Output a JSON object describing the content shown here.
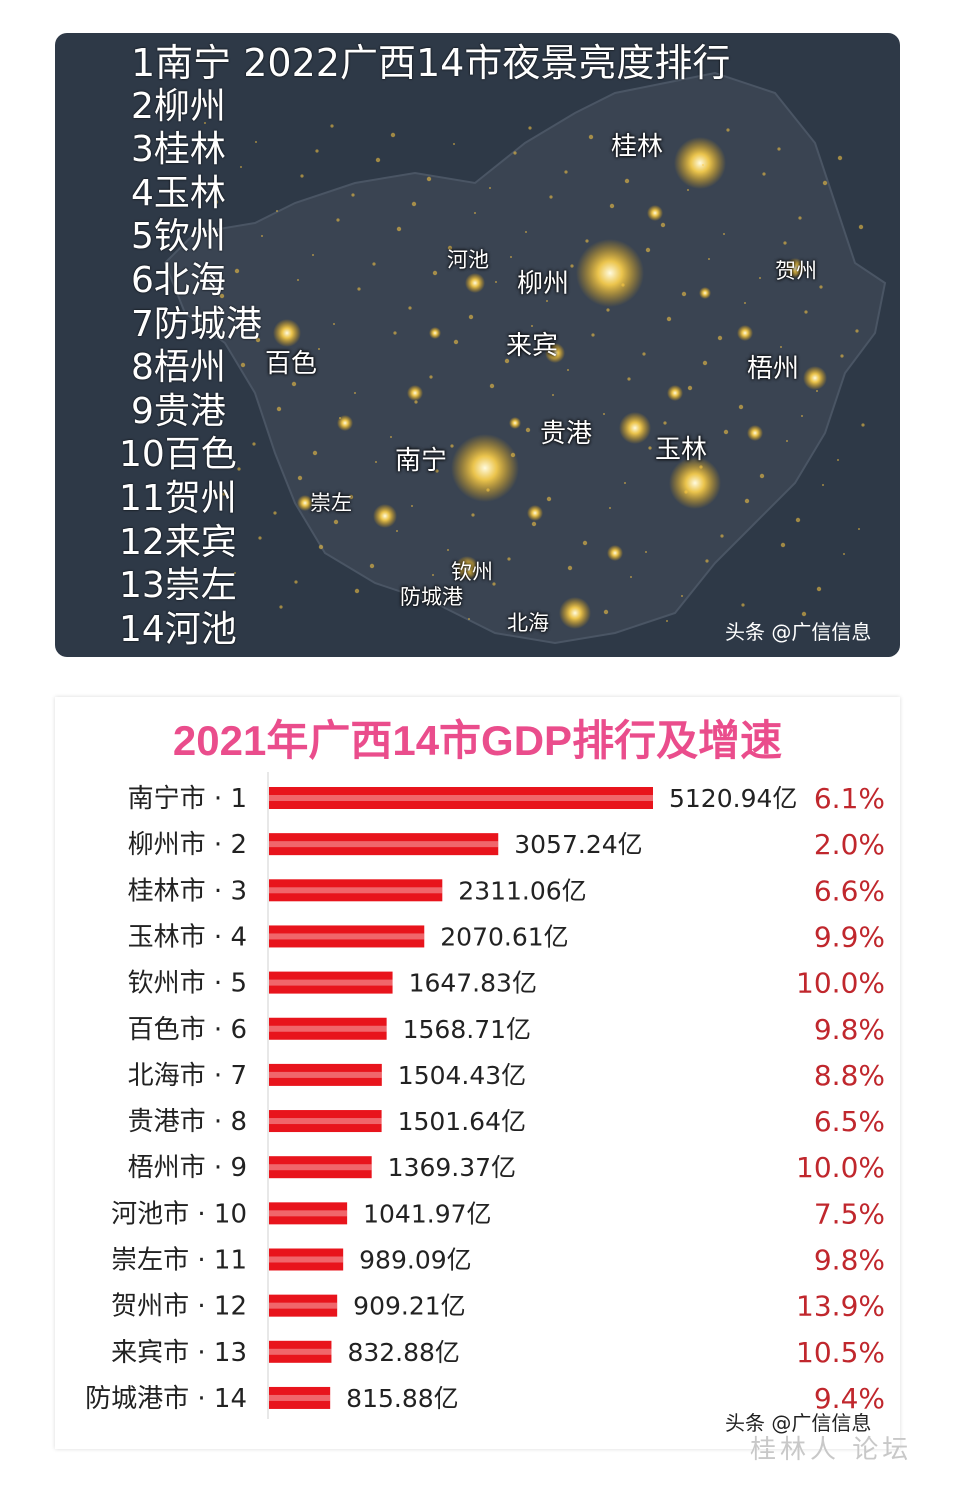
{
  "map": {
    "title": "1南宁 2022广西14市夜景亮度排行",
    "ranking": [
      "2柳州",
      "3桂林",
      "4玉林",
      "5钦州",
      "6北海",
      "7防城港",
      "8梧州",
      "9贵港",
      "10百色",
      "11贺州",
      "12来宾",
      "13崇左",
      "14河池"
    ],
    "cities": [
      "桂林",
      "河池",
      "贺州",
      "柳州",
      "来宾",
      "百色",
      "梧州",
      "贵港",
      "玉林",
      "南宁",
      "崇左",
      "钦州",
      "防城港",
      "北海"
    ],
    "watermark": "头条 @广信信息"
  },
  "chart_data": {
    "type": "bar",
    "orientation": "horizontal",
    "title": "2021年广西14市GDP排行及增速",
    "categories": [
      "南宁市 · 1",
      "柳州市 · 2",
      "桂林市 · 3",
      "玉林市 · 4",
      "钦州市 · 5",
      "百色市 · 6",
      "北海市 · 7",
      "贵港市 · 8",
      "梧州市 · 9",
      "河池市 · 10",
      "崇左市 · 11",
      "贺州市 · 12",
      "来宾市 · 13",
      "防城港市 · 14"
    ],
    "values": [
      5120.94,
      3057.24,
      2311.06,
      2070.61,
      1647.83,
      1568.71,
      1504.43,
      1501.64,
      1369.37,
      1041.97,
      989.09,
      909.21,
      832.88,
      815.88
    ],
    "value_labels": [
      "5120.94亿",
      "3057.24亿",
      "2311.06亿",
      "2070.61亿",
      "1647.83亿",
      "1568.71亿",
      "1504.43亿",
      "1501.64亿",
      "1369.37亿",
      "1041.97亿",
      "989.09亿",
      "909.21亿",
      "832.88亿",
      "815.88亿"
    ],
    "growth_labels": [
      "6.1%",
      "2.0%",
      "6.6%",
      "9.9%",
      "10.0%",
      "9.8%",
      "8.8%",
      "6.5%",
      "10.0%",
      "7.5%",
      "9.8%",
      "13.9%",
      "10.5%",
      "9.4%"
    ],
    "bar_color": "#e8141c",
    "growth_color": "#c0272d",
    "xlim": [
      0,
      5120.94
    ]
  },
  "chart_watermark": "头条 @广信信息",
  "site_mark": "桂林人 论坛"
}
